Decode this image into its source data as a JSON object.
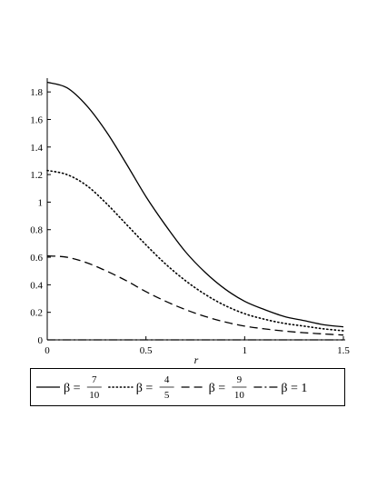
{
  "chart_data": {
    "type": "line",
    "xlabel": "r",
    "ylabel": "",
    "xlim": [
      0,
      1.5
    ],
    "ylim": [
      0,
      1.9
    ],
    "xticks": [
      0,
      0.5,
      1,
      1.5
    ],
    "xtick_labels": [
      "0",
      "0.5",
      "1",
      "1.5"
    ],
    "yticks": [
      0,
      0.2,
      0.4,
      0.6,
      0.8,
      1.0,
      1.2,
      1.4,
      1.6,
      1.8
    ],
    "ytick_labels": [
      "0",
      "0.2",
      "0.4",
      "0.6",
      "0.8",
      "1",
      "1.2",
      "1.4",
      "1.6",
      "1.8"
    ],
    "grid": false,
    "legend_position": "bottom",
    "x": [
      0,
      0.1,
      0.2,
      0.3,
      0.4,
      0.5,
      0.6,
      0.7,
      0.8,
      0.9,
      1.0,
      1.1,
      1.2,
      1.3,
      1.4,
      1.5
    ],
    "series": [
      {
        "name": "β = 7/10",
        "num": "7",
        "den": "10",
        "style": "solid",
        "values": [
          1.87,
          1.83,
          1.7,
          1.51,
          1.28,
          1.04,
          0.83,
          0.64,
          0.49,
          0.37,
          0.28,
          0.22,
          0.17,
          0.14,
          0.11,
          0.095
        ]
      },
      {
        "name": "β = 4/5",
        "num": "4",
        "den": "5",
        "style": "dotted",
        "values": [
          1.23,
          1.2,
          1.12,
          0.99,
          0.84,
          0.69,
          0.55,
          0.43,
          0.33,
          0.25,
          0.19,
          0.15,
          0.12,
          0.1,
          0.08,
          0.066
        ]
      },
      {
        "name": "β = 9/10",
        "num": "9",
        "den": "10",
        "style": "dashed",
        "values": [
          0.61,
          0.6,
          0.56,
          0.5,
          0.43,
          0.35,
          0.28,
          0.22,
          0.17,
          0.13,
          0.1,
          0.08,
          0.064,
          0.052,
          0.043,
          0.035
        ]
      },
      {
        "name": "β = 1",
        "num": "",
        "den": "",
        "style": "dashdot",
        "values": [
          0,
          0,
          0,
          0,
          0,
          0,
          0,
          0,
          0,
          0,
          0,
          0,
          0,
          0,
          0,
          0
        ]
      }
    ]
  }
}
